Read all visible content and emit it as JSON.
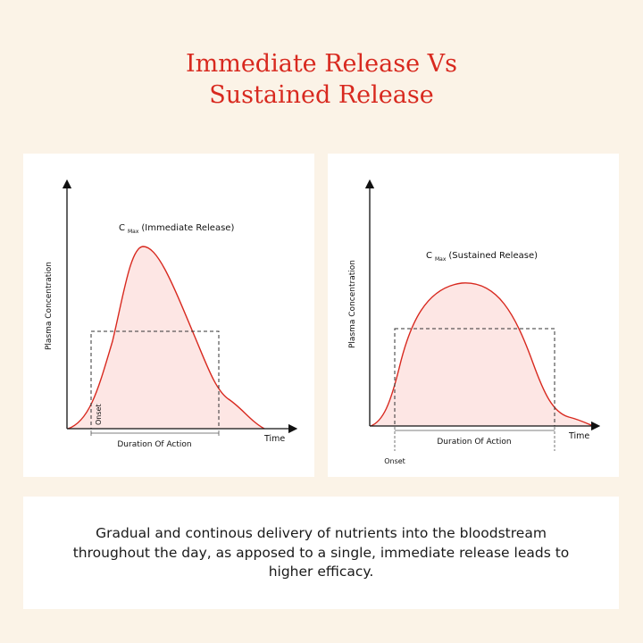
{
  "title_line1": "Immediate Release Vs",
  "title_line2": "Sustained Release",
  "panels": [
    {
      "y_axis_label": "Plasma Concentration",
      "x_axis_label": "Time",
      "cmax_label": "C",
      "cmax_subscript": "Max",
      "cmax_suffix": "(Immediate Release)",
      "onset_label": "Onset",
      "duration_label": "Duration Of Action"
    },
    {
      "y_axis_label": "Plasma Concentration",
      "x_axis_label": "Time",
      "cmax_label": "C",
      "cmax_subscript": "Max",
      "cmax_suffix": "(Sustained Release)",
      "onset_label": "Onset",
      "duration_label": "Duration Of Action"
    }
  ],
  "caption": "Gradual and continous delivery of nutrients into the bloodstream throughout the day, as apposed to a single, immediate release leads to higher efficacy.",
  "colors": {
    "background": "#fbf3e7",
    "title": "#d8291f",
    "curve": "#d8291f",
    "curve_fill": "#fde6e4",
    "axis": "#111111"
  }
}
